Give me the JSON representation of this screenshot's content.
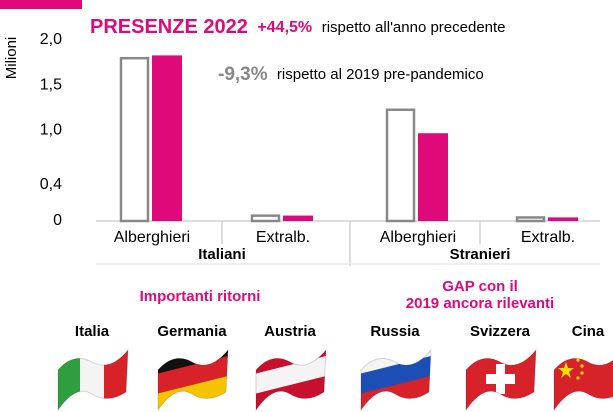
{
  "chart_data": {
    "type": "bar",
    "title": {
      "main": "PRESENZE 2022",
      "change": "+44,5%",
      "rest": "rispetto all'anno precedente"
    },
    "annotation": {
      "change": "-9,3%",
      "rest": "rispetto al 2019 pre-pandemico"
    },
    "ylabel": "Milioni",
    "categories": [
      "Alberghieri",
      "Extralb.",
      "Alberghieri",
      "Extralb."
    ],
    "groups": [
      "Italiani",
      "Stranieri"
    ],
    "series": [
      {
        "color": "#888888",
        "fill": false,
        "values": [
          1.81,
          0.07,
          1.24,
          0.05
        ]
      },
      {
        "color": "#e0097a",
        "fill": true,
        "values": [
          1.83,
          0.06,
          0.97,
          0.04
        ]
      }
    ],
    "ylim": [
      0,
      2.0
    ],
    "yticks": [
      0,
      {
        "value": 0.4,
        "label": "0,4"
      },
      {
        "value": 1.0,
        "label": "1,0"
      },
      {
        "value": 1.5,
        "label": "1,5"
      },
      {
        "value": 2.0,
        "label": "2,0"
      }
    ],
    "panels": [
      {
        "label": [
          "Importanti ritorni"
        ],
        "countries": [
          "Italia",
          "Germania",
          "Austria"
        ]
      },
      {
        "label": [
          "GAP con il",
          "2019 ancora rilevanti"
        ],
        "countries": [
          "Russia",
          "Svizzera",
          "Cina"
        ]
      }
    ]
  }
}
